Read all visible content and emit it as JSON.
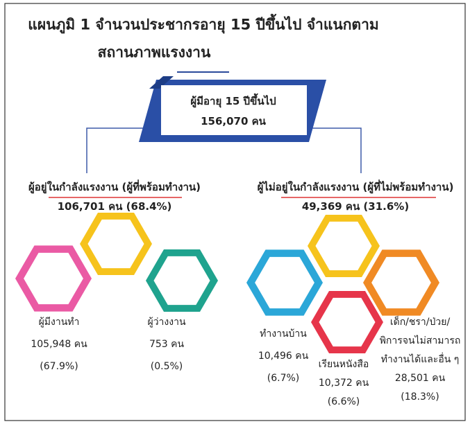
{
  "title": [
    "แผนภูมิ 1 จำนวนประชากรอายุ 15 ปีขึ้นไป จำแนกตาม",
    "สถานภาพแรงงาน"
  ],
  "total": {
    "label": "ผู้มีอายุ 15 ปีขึ้นไป",
    "value": "156,070 คน"
  },
  "groups": [
    {
      "label": "ผู้อยู่ในกำลังแรงงาน (ผู้ที่พร้อมทำงาน)",
      "value": "106,701 คน (68.4%)",
      "items": [
        {
          "label": [
            "ผู้มีงานทำ"
          ],
          "value": "105,948 คน",
          "share": "(67.9%)"
        },
        {
          "label": [
            "ผู้ว่างงาน"
          ],
          "value": "753 คน",
          "share": "(0.5%)"
        }
      ]
    },
    {
      "label": "ผู้ไม่อยู่ในกำลังแรงงาน (ผู้ที่ไม่พร้อมทำงาน)",
      "value": "49,369 คน (31.6%)",
      "items": [
        {
          "label": [
            "ทำงานบ้าน"
          ],
          "value": "10,496 คน",
          "share": "(6.7%)"
        },
        {
          "label": [
            "เรียนหนังสือ"
          ],
          "value": "10,372 คน",
          "share": "(6.6%)"
        },
        {
          "label": [
            "เด็ก/ชรา/ป่วย/",
            "พิการจนไม่สามารถ",
            "ทำงานได้และอื่น ๆ"
          ],
          "value": "28,501 คน",
          "share": "(18.3%)"
        }
      ]
    }
  ]
}
